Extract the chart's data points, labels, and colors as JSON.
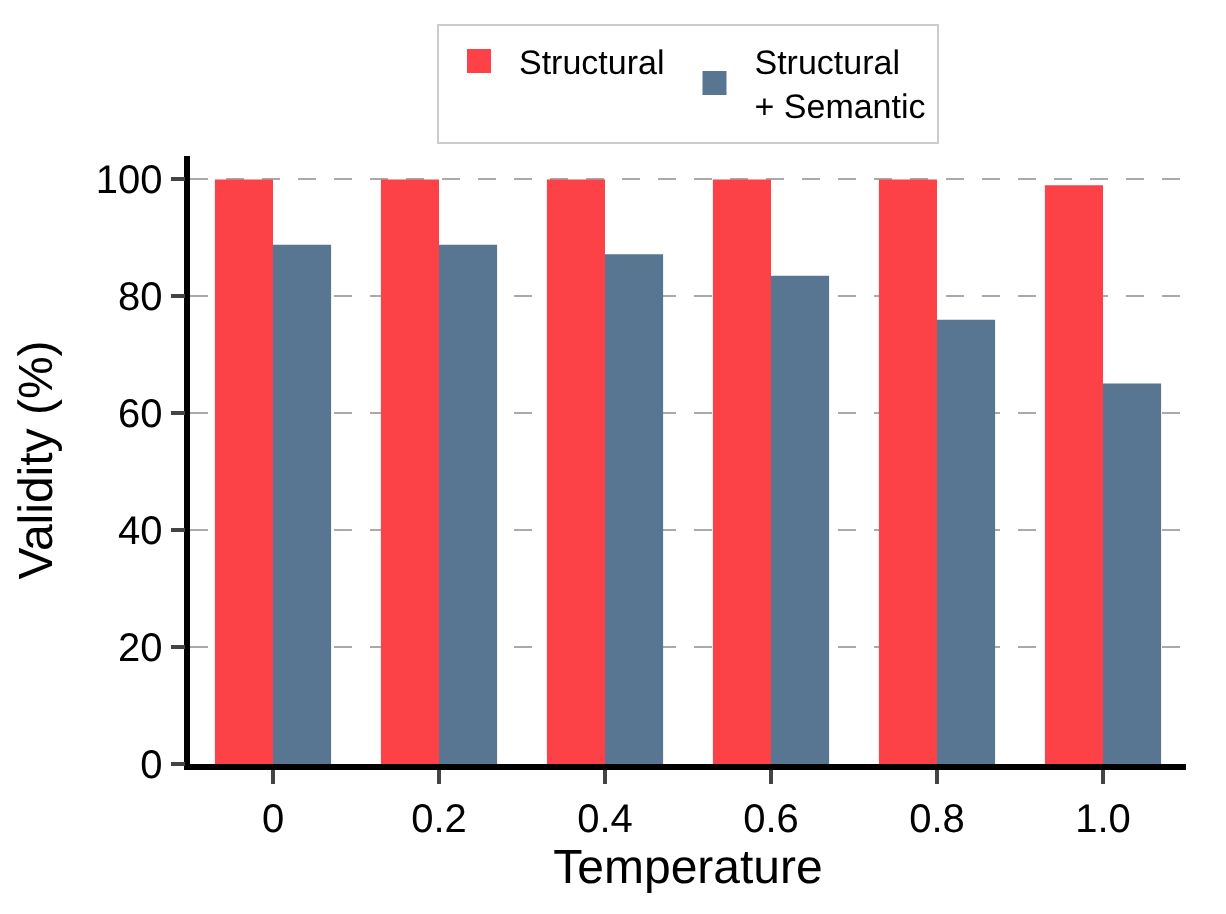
{
  "chart_data": {
    "type": "bar",
    "xlabel": "Temperature",
    "ylabel": "Validity (%)",
    "categories": [
      "0",
      "0.2",
      "0.4",
      "0.6",
      "0.8",
      "1.0"
    ],
    "series": [
      {
        "name": "Structural",
        "color": "#fc4246",
        "values": [
          100,
          100,
          100,
          100,
          100,
          99
        ]
      },
      {
        "name": "Structural\n+ Semantic",
        "color": "#587591",
        "values": [
          88.8,
          88.8,
          87.2,
          83.5,
          76,
          65.1
        ]
      }
    ],
    "ylim": [
      0,
      104
    ],
    "yticks": [
      0,
      20,
      40,
      60,
      80,
      100
    ],
    "grid": "y",
    "legend": "top"
  }
}
